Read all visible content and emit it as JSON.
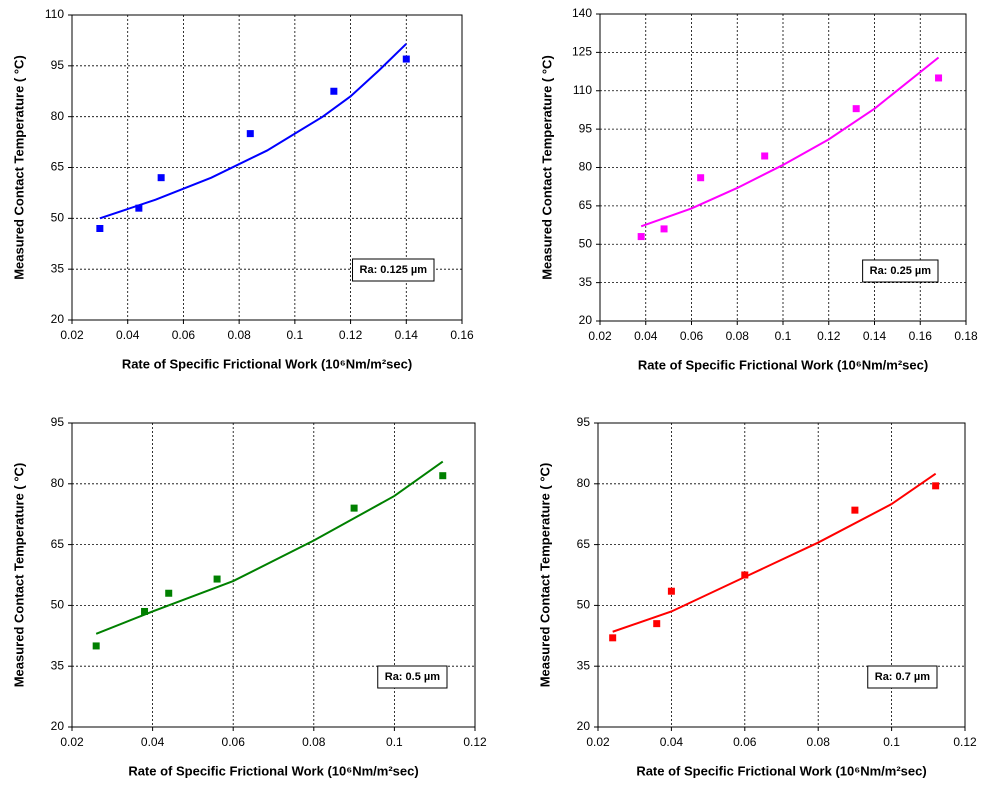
{
  "chart_data": [
    {
      "type": "scatter",
      "xlabel": "Rate of Specific Frictional Work (10⁶Nm/m²sec)",
      "ylabel": "Measured Contact Temperature ( °C)",
      "annotation": "Ra: 0.125 µm",
      "xlim": [
        0.02,
        0.16
      ],
      "xticks": [
        0.02,
        0.04,
        0.06,
        0.08,
        0.1,
        0.12,
        0.14,
        0.16
      ],
      "ylim": [
        20,
        110
      ],
      "yticks": [
        20,
        35,
        50,
        65,
        80,
        95,
        110
      ],
      "grid": true,
      "series": [
        {
          "type": "scatter",
          "color": "#0000ff",
          "x": [
            0.03,
            0.044,
            0.052,
            0.084,
            0.114,
            0.14
          ],
          "values": [
            47,
            53,
            62,
            75,
            87.5,
            97
          ]
        },
        {
          "type": "line",
          "color": "#0000ff",
          "x": [
            0.03,
            0.05,
            0.07,
            0.09,
            0.11,
            0.12,
            0.13,
            0.14
          ],
          "values": [
            50,
            55.5,
            62,
            70,
            80,
            86,
            93.5,
            101.5
          ]
        }
      ]
    },
    {
      "type": "scatter",
      "xlabel": "Rate of Specific Frictional Work (10⁶Nm/m²sec)",
      "ylabel": "Measured Contact Temperature ( °C)",
      "annotation": "Ra: 0.25 µm",
      "xlim": [
        0.02,
        0.18
      ],
      "xticks": [
        0.02,
        0.04,
        0.06,
        0.08,
        0.1,
        0.12,
        0.14,
        0.16,
        0.18
      ],
      "ylim": [
        20,
        140
      ],
      "yticks": [
        20,
        35,
        50,
        65,
        80,
        95,
        110,
        125,
        140
      ],
      "grid": true,
      "series": [
        {
          "type": "scatter",
          "color": "#ff00ff",
          "x": [
            0.038,
            0.048,
            0.064,
            0.092,
            0.132,
            0.168
          ],
          "values": [
            53,
            56,
            76,
            84.5,
            103,
            115
          ]
        },
        {
          "type": "line",
          "color": "#ff00ff",
          "x": [
            0.038,
            0.06,
            0.08,
            0.1,
            0.12,
            0.14,
            0.168
          ],
          "values": [
            57,
            64,
            72,
            81,
            91,
            103,
            123
          ]
        }
      ]
    },
    {
      "type": "scatter",
      "xlabel": "Rate of Specific Frictional Work (10⁶Nm/m²sec)",
      "ylabel": "Measured Contact Temperature ( °C)",
      "annotation": "Ra: 0.5 µm",
      "xlim": [
        0.02,
        0.12
      ],
      "xticks": [
        0.02,
        0.04,
        0.06,
        0.08,
        0.1,
        0.12
      ],
      "ylim": [
        20,
        95
      ],
      "yticks": [
        20,
        35,
        50,
        65,
        80,
        95
      ],
      "grid": true,
      "series": [
        {
          "type": "scatter",
          "color": "#008000",
          "x": [
            0.026,
            0.038,
            0.044,
            0.056,
            0.09,
            0.112
          ],
          "values": [
            40,
            48.5,
            53,
            56.5,
            74,
            82
          ]
        },
        {
          "type": "line",
          "color": "#008000",
          "x": [
            0.026,
            0.04,
            0.06,
            0.08,
            0.1,
            0.112
          ],
          "values": [
            43,
            48.5,
            56,
            66,
            77,
            85.5
          ]
        }
      ]
    },
    {
      "type": "scatter",
      "xlabel": "Rate of Specific Frictional Work (10⁶Nm/m²sec)",
      "ylabel": "Measured Contact Temperature ( °C)",
      "annotation": "Ra: 0.7 µm",
      "xlim": [
        0.02,
        0.12
      ],
      "xticks": [
        0.02,
        0.04,
        0.06,
        0.08,
        0.1,
        0.12
      ],
      "ylim": [
        20,
        95
      ],
      "yticks": [
        20,
        35,
        50,
        65,
        80,
        95
      ],
      "grid": true,
      "series": [
        {
          "type": "scatter",
          "color": "#ff0000",
          "x": [
            0.024,
            0.036,
            0.04,
            0.06,
            0.09,
            0.112
          ],
          "values": [
            42,
            45.5,
            53.5,
            57.5,
            73.5,
            79.5
          ]
        },
        {
          "type": "line",
          "color": "#ff0000",
          "x": [
            0.024,
            0.04,
            0.06,
            0.08,
            0.1,
            0.112
          ],
          "values": [
            43.5,
            48.5,
            57,
            65.5,
            75,
            82.5
          ]
        }
      ]
    }
  ]
}
